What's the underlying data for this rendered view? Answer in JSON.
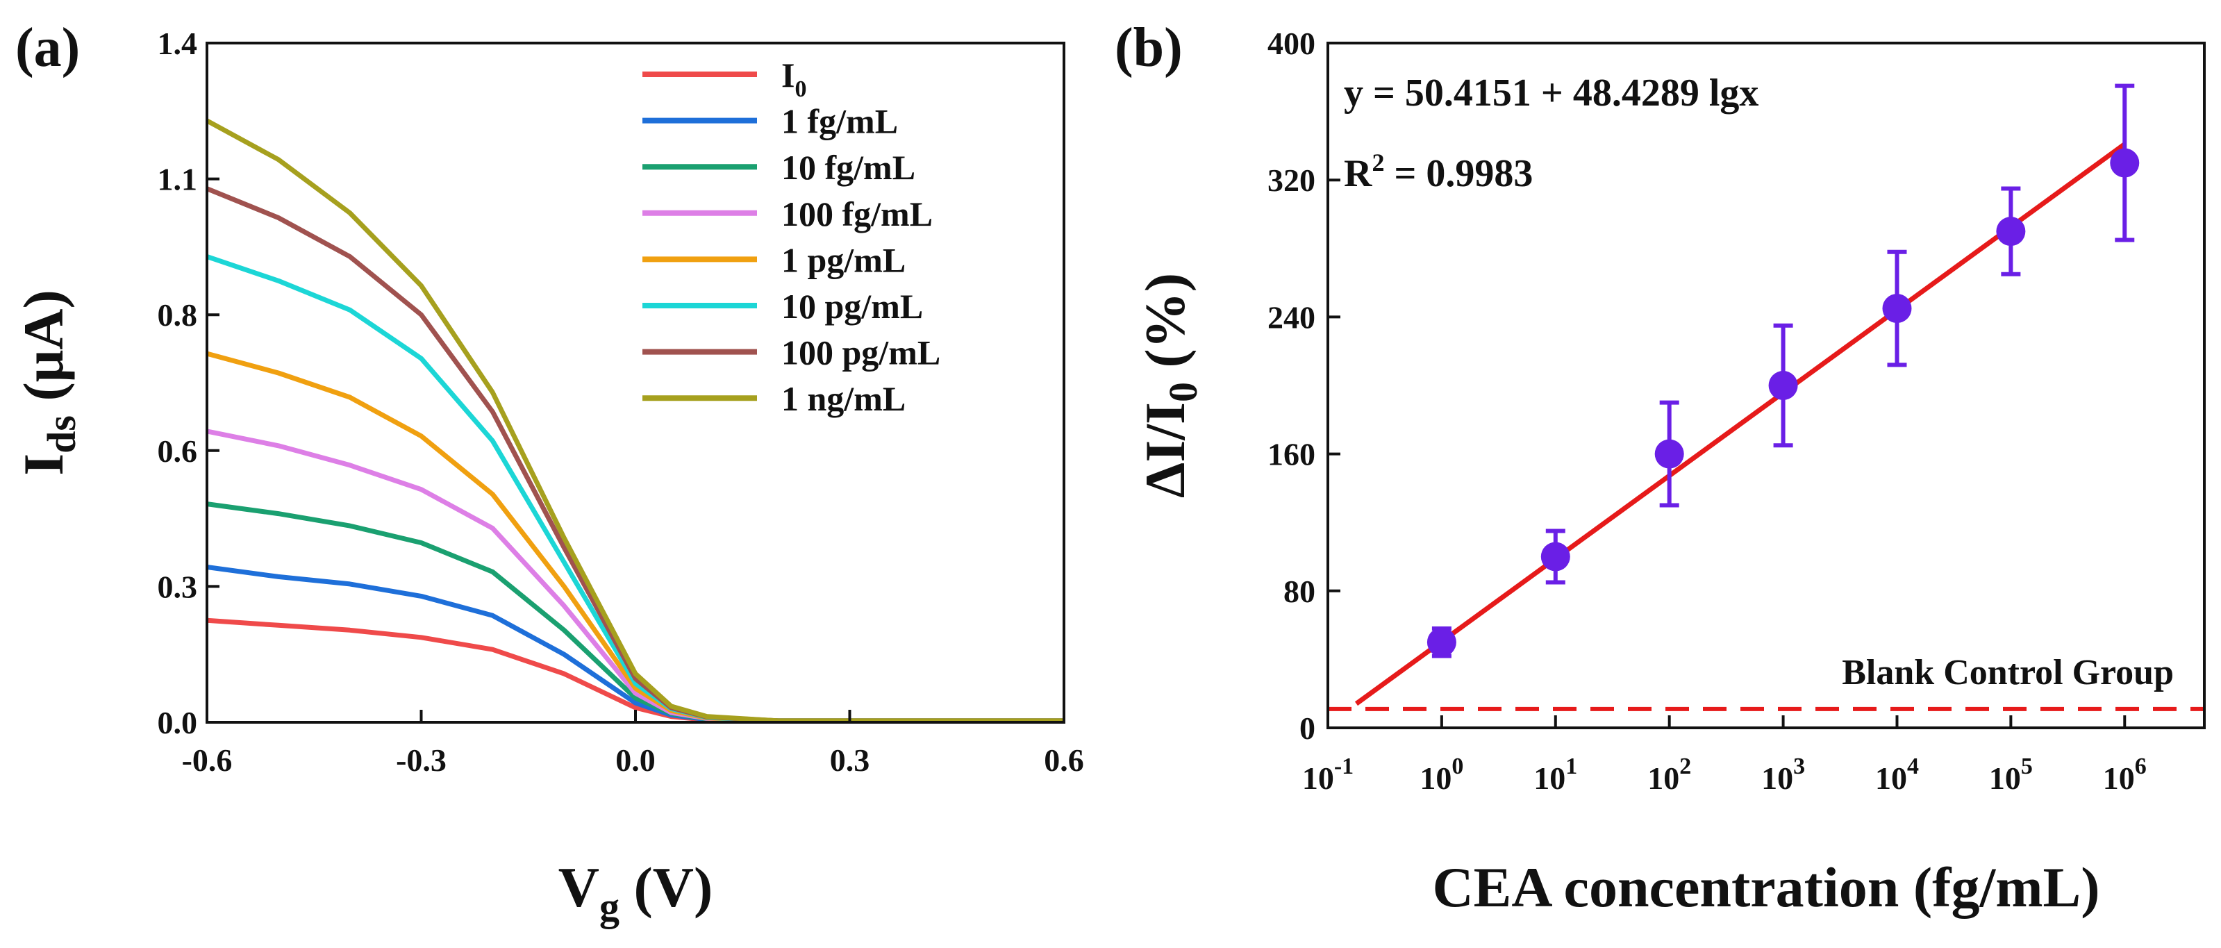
{
  "chart_data": [
    {
      "panel": "(a)",
      "type": "line",
      "xlabel_main": "V",
      "xlabel_sub": "g",
      "xlabel_unit": "(V)",
      "ylabel_main": "I",
      "ylabel_sub": "ds",
      "ylabel_unit": "(μA)",
      "xlim": [
        -0.6,
        0.6
      ],
      "ylim": [
        0,
        1.4
      ],
      "xticks": [
        -0.6,
        -0.3,
        0.0,
        0.3,
        0.6
      ],
      "xtick_labels": [
        "-0.6",
        "-0.3",
        "0.0",
        "0.3",
        "0.6"
      ],
      "yticks": [
        0.0,
        0.3,
        0.6,
        0.8,
        1.1,
        1.4
      ],
      "ytick_labels": [
        "0.0",
        "0.3",
        "0.6",
        "0.8",
        "1.1",
        "1.4"
      ],
      "ytick_positions": [
        0.0,
        0.28,
        0.56,
        0.84,
        1.12,
        1.4
      ],
      "legend_position": "top-right",
      "series": [
        {
          "name": "I",
          "name_sub": "0",
          "color": "#ef4a4a",
          "x": [
            -0.6,
            -0.5,
            -0.4,
            -0.3,
            -0.2,
            -0.1,
            0.0,
            0.05,
            0.1,
            0.2,
            0.6
          ],
          "y": [
            0.21,
            0.2,
            0.19,
            0.175,
            0.15,
            0.1,
            0.03,
            0.012,
            0.005,
            0.003,
            0.003
          ]
        },
        {
          "name": "1 fg/mL",
          "color": "#1e6fd9",
          "x": [
            -0.6,
            -0.5,
            -0.4,
            -0.3,
            -0.2,
            -0.1,
            0.0,
            0.05,
            0.1,
            0.2,
            0.6
          ],
          "y": [
            0.32,
            0.3,
            0.285,
            0.26,
            0.22,
            0.14,
            0.04,
            0.015,
            0.006,
            0.003,
            0.003
          ]
        },
        {
          "name": "10 fg/mL",
          "color": "#1aa070",
          "x": [
            -0.6,
            -0.5,
            -0.4,
            -0.3,
            -0.2,
            -0.1,
            0.0,
            0.05,
            0.1,
            0.2,
            0.6
          ],
          "y": [
            0.45,
            0.43,
            0.405,
            0.37,
            0.31,
            0.19,
            0.05,
            0.018,
            0.007,
            0.003,
            0.003
          ]
        },
        {
          "name": "100 fg/mL",
          "color": "#dd7fe6",
          "x": [
            -0.6,
            -0.5,
            -0.4,
            -0.3,
            -0.2,
            -0.1,
            0.0,
            0.05,
            0.1,
            0.2,
            0.6
          ],
          "y": [
            0.6,
            0.57,
            0.53,
            0.48,
            0.4,
            0.24,
            0.06,
            0.02,
            0.008,
            0.003,
            0.003
          ]
        },
        {
          "name": "1 pg/mL",
          "color": "#f0a010",
          "x": [
            -0.6,
            -0.5,
            -0.4,
            -0.3,
            -0.2,
            -0.1,
            0.0,
            0.05,
            0.1,
            0.2,
            0.6
          ],
          "y": [
            0.76,
            0.72,
            0.67,
            0.59,
            0.47,
            0.28,
            0.07,
            0.024,
            0.009,
            0.003,
            0.003
          ]
        },
        {
          "name": "10 pg/mL",
          "color": "#1cd6d6",
          "x": [
            -0.6,
            -0.5,
            -0.4,
            -0.3,
            -0.2,
            -0.1,
            0.0,
            0.05,
            0.1,
            0.2,
            0.6
          ],
          "y": [
            0.96,
            0.91,
            0.85,
            0.75,
            0.58,
            0.33,
            0.08,
            0.028,
            0.01,
            0.003,
            0.003
          ]
        },
        {
          "name": "100 pg/mL",
          "color": "#a0524f",
          "x": [
            -0.6,
            -0.5,
            -0.4,
            -0.3,
            -0.2,
            -0.1,
            0.0,
            0.05,
            0.1,
            0.2,
            0.6
          ],
          "y": [
            1.1,
            1.04,
            0.96,
            0.84,
            0.64,
            0.36,
            0.09,
            0.03,
            0.011,
            0.003,
            0.003
          ]
        },
        {
          "name": "1 ng/mL",
          "color": "#a6a01e",
          "x": [
            -0.6,
            -0.5,
            -0.4,
            -0.3,
            -0.2,
            -0.1,
            0.0,
            0.05,
            0.1,
            0.2,
            0.6
          ],
          "y": [
            1.24,
            1.16,
            1.05,
            0.9,
            0.68,
            0.38,
            0.1,
            0.033,
            0.012,
            0.003,
            0.003
          ]
        }
      ]
    },
    {
      "panel": "(b)",
      "type": "scatter",
      "xscale": "log",
      "xlabel": "CEA concentration (fg/mL)",
      "ylabel_main": "ΔI/I",
      "ylabel_sub": "0",
      "ylabel_unit": "(%)",
      "xlim_log10": [
        -1,
        6.7
      ],
      "ylim": [
        0,
        400
      ],
      "xtick_exponents": [
        "-1",
        "0",
        "1",
        "2",
        "3",
        "4",
        "5",
        "6"
      ],
      "xtick_base": "10",
      "yticks": [
        0,
        80,
        160,
        240,
        320,
        400
      ],
      "ytick_labels": [
        "0",
        "80",
        "160",
        "240",
        "320",
        "400"
      ],
      "points": {
        "log10x": [
          0,
          1,
          2,
          3,
          4,
          5,
          6
        ],
        "y": [
          50,
          100,
          160,
          200,
          245,
          290,
          330
        ],
        "err": [
          8,
          15,
          30,
          35,
          33,
          25,
          45
        ],
        "color": "#6a1fe6"
      },
      "fit": {
        "intercept": 50.4151,
        "slope": 48.4289,
        "log10x_range": [
          -0.75,
          6
        ],
        "color": "#e61a1a"
      },
      "equation": "y = 50.4151 + 48.4289 lgx",
      "r2_label": "R",
      "r2_sup": "2",
      "r2_value": " = 0.9983",
      "blank_label": "Blank Control Group",
      "blank_value": 11,
      "blank_color": "#e61a1a"
    }
  ]
}
